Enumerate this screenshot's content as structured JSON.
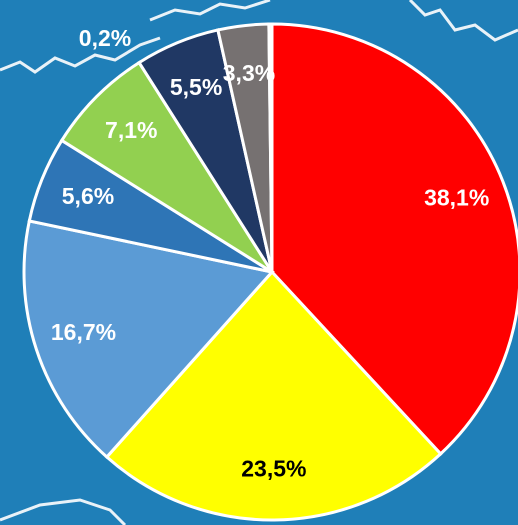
{
  "chart_data": {
    "type": "pie",
    "categories": [
      null,
      null,
      null,
      null,
      null,
      null,
      null,
      null
    ],
    "values": [
      38.1,
      23.5,
      16.7,
      5.6,
      7.1,
      5.5,
      3.3,
      0.2
    ],
    "value_labels": [
      "38,1%",
      "23,5%",
      "16,7%",
      "5,6%",
      "7,1%",
      "5,5%",
      "3,3%",
      "0,2%"
    ],
    "colors": [
      "#ff0000",
      "#ffff00",
      "#5b9bd5",
      "#2e75b6",
      "#92d050",
      "#203864",
      "#767171",
      "#bfbfbf"
    ],
    "label_colors": [
      "#ffffff",
      "#000000",
      "#ffffff",
      "#ffffff",
      "#ffffff",
      "#ffffff",
      "#ffffff",
      "#ffffff"
    ]
  }
}
